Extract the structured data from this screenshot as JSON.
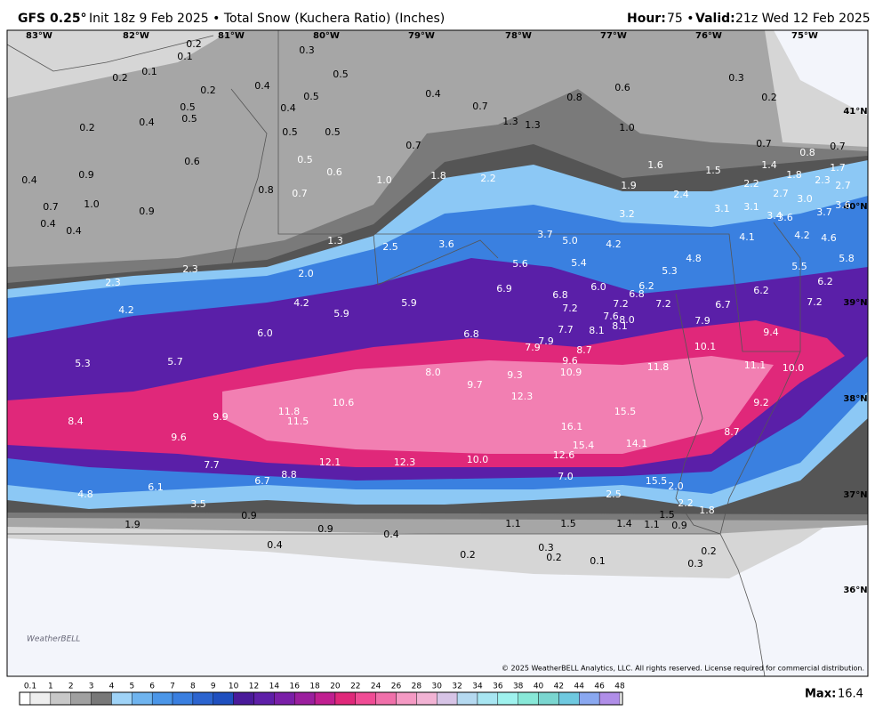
{
  "header": {
    "model": "GFS 0.25°",
    "init": "Init 18z 9 Feb 2025 • Total Snow (Kuchera Ratio) (Inches)",
    "hour_label": "Hour:",
    "hour": "75 •",
    "valid_label": "Valid:",
    "valid": "21z Wed 12 Feb 2025"
  },
  "longitudes": [
    "83°W",
    "82°W",
    "81°W",
    "80°W",
    "79°W",
    "78°W",
    "77°W",
    "76°W",
    "75°W"
  ],
  "latitudes": [
    "41°N",
    "40°N",
    "39°N",
    "38°N",
    "37°N",
    "36°N"
  ],
  "map_labels": [
    "0.2",
    "0.1",
    "0.3",
    "0.1",
    "0.2",
    "0.5",
    "0.3",
    "0.2",
    "0.4",
    "0.6",
    "0.5",
    "0.4",
    "0.8",
    "0.2",
    "0.5",
    "0.4",
    "0.7",
    "0.5",
    "0.4",
    "1.3",
    "1.3",
    "0.2",
    "0.5",
    "0.5",
    "1.0",
    "0.7",
    "0.7",
    "0.8",
    "0.7",
    "0.6",
    "0.5",
    "1.6",
    "1.5",
    "1.4",
    "1.7",
    "0.4",
    "0.9",
    "0.6",
    "1.0",
    "1.8",
    "2.2",
    "1.8",
    "2.3",
    "2.7",
    "0.8",
    "0.7",
    "1.9",
    "2.2",
    "2.7",
    "2.4",
    "3.0",
    "0.7",
    "1.0",
    "0.9",
    "3.6",
    "3.2",
    "3.1",
    "3.1",
    "3.4",
    "3.6",
    "3.7",
    "0.4",
    "0.4",
    "1.3",
    "2.5",
    "3.6",
    "3.7",
    "5.0",
    "4.2",
    "4.1",
    "4.2",
    "4.6",
    "5.8",
    "4.8",
    "5.5",
    "2.3",
    "2.0",
    "5.6",
    "5.4",
    "5.3",
    "2.3",
    "6.0",
    "6.2",
    "6.9",
    "6.8",
    "6.8",
    "6.2",
    "6.2",
    "4.2",
    "5.9",
    "7.2",
    "7.2",
    "7.2",
    "6.7",
    "7.2",
    "4.2",
    "5.9",
    "7.6",
    "8.0",
    "7.9",
    "7.7",
    "8.1",
    "8.1",
    "6.8",
    "6.0",
    "9.4",
    "7.9",
    "7.9",
    "10.1",
    "8.7",
    "5.3",
    "5.7",
    "9.6",
    "11.8",
    "11.1",
    "10.0",
    "8.0",
    "9.3",
    "10.9",
    "9.7",
    "12.3",
    "10.6",
    "9.2",
    "11.8",
    "11.5",
    "15.5",
    "9.9",
    "8.4",
    "16.1",
    "8.7",
    "9.6",
    "15.4",
    "14.1",
    "12.6",
    "10.0",
    "12.1",
    "12.3",
    "7.7",
    "8.8",
    "7.0",
    "6.7",
    "15.5",
    "2.0",
    "6.1",
    "4.8",
    "2.5",
    "3.5",
    "2.2",
    "1.8",
    "0.9",
    "1.5",
    "1.9",
    "1.1",
    "1.5",
    "1.4",
    "1.1",
    "0.9",
    "0.9",
    "0.4",
    "0.4",
    "0.3",
    "0.2",
    "0.2",
    "0.2",
    "0.1",
    "0.3"
  ],
  "legend": {
    "ticks": [
      "0.1",
      "1",
      "2",
      "3",
      "4",
      "5",
      "6",
      "7",
      "8",
      "9",
      "10",
      "12",
      "14",
      "16",
      "18",
      "20",
      "22",
      "24",
      "26",
      "28",
      "30",
      "32",
      "34",
      "36",
      "38",
      "40",
      "42",
      "44",
      "46",
      "48"
    ],
    "colors": [
      "#eeeeee",
      "#c8c8c8",
      "#a0a0a0",
      "#787878",
      "#9fd3f7",
      "#6fb4ef",
      "#4b96e8",
      "#3a7fe0",
      "#2c64cf",
      "#1f4fbf",
      "#4a1a9a",
      "#5e1fa8",
      "#7a1fa8",
      "#9b1f9e",
      "#c01f90",
      "#e0287a",
      "#f04c95",
      "#f070aa",
      "#f59ac4",
      "#f2b3d4",
      "#d7c4e6",
      "#b5d9f0",
      "#a8e6f2",
      "#9ff2ee",
      "#88e8d8",
      "#7ad6d0",
      "#6fc9e0",
      "#8aa8f0",
      "#b08ee8"
    ]
  },
  "max_label": "Max:",
  "max_value": "16.4",
  "logo": "WeatherBELL",
  "copyright": "© 2025 WeatherBELL Analytics, LLC. All rights reserved. License required for commercial distribution."
}
